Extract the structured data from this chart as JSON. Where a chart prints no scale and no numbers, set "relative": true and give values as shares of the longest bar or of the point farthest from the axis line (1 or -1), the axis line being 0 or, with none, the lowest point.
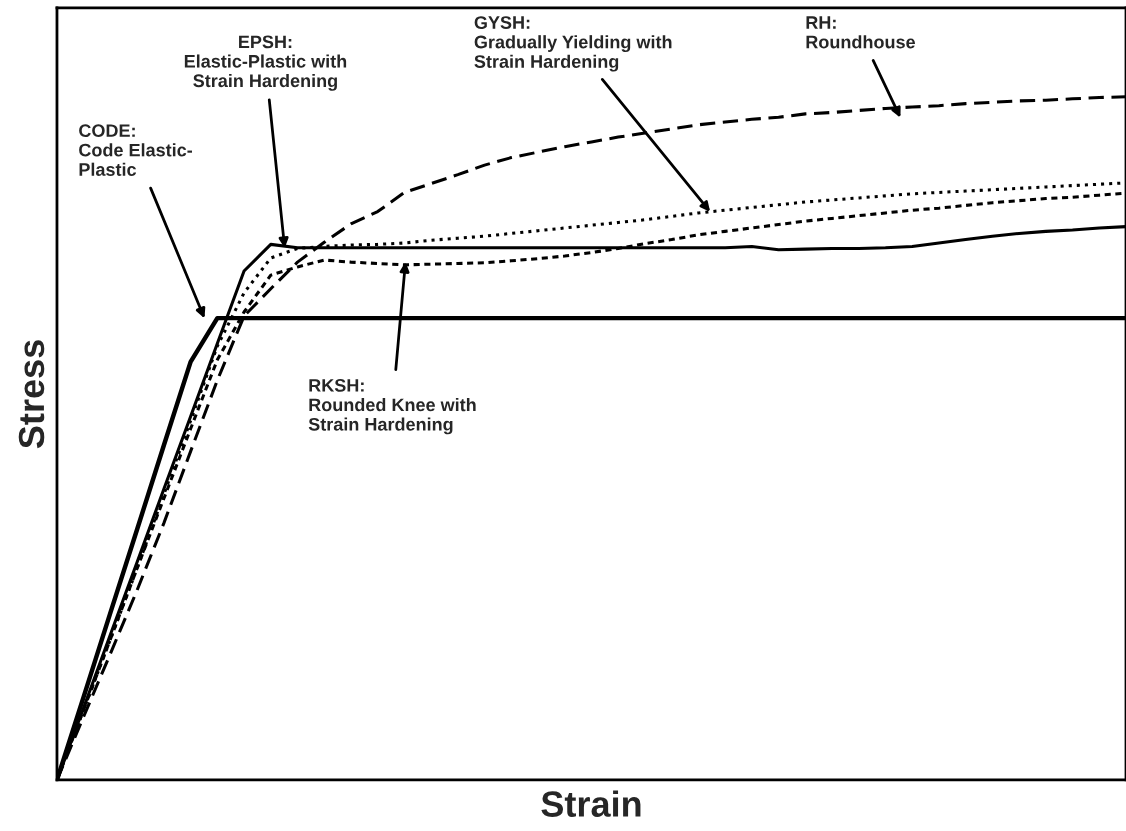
{
  "chart_data": {
    "type": "line",
    "relative": true,
    "xlabel": "Strain",
    "ylabel": "Stress",
    "categories": [
      null,
      null,
      null,
      null,
      null,
      null,
      null,
      null,
      null,
      null,
      null,
      null,
      null,
      null,
      null,
      null,
      null,
      null,
      null,
      null,
      null,
      null,
      null,
      null,
      null,
      null,
      null,
      null,
      null,
      null,
      null,
      null,
      null,
      null,
      null,
      null,
      null,
      null,
      null,
      null,
      null
    ],
    "series": [
      {
        "color": "#000000",
        "line_style": "solid",
        "values": [
          0,
          0.122,
          0.245,
          0.367,
          0.49,
          0.612,
          0.676,
          0.676,
          0.676,
          0.676,
          0.676,
          0.676,
          0.676,
          0.676,
          0.676,
          0.676,
          0.676,
          0.676,
          0.676,
          0.676,
          0.676,
          0.676,
          0.676,
          0.676,
          0.676,
          0.676,
          0.676,
          0.676,
          0.676,
          0.676,
          0.676,
          0.676,
          0.676,
          0.676,
          0.676,
          0.676,
          0.676,
          0.676,
          0.676,
          0.676,
          0.676
        ]
      },
      {
        "color": "#000000",
        "line_style": "solid",
        "values": [
          0,
          0.106,
          0.213,
          0.319,
          0.426,
          0.532,
          0.639,
          0.745,
          0.784,
          0.779,
          0.779,
          0.779,
          0.779,
          0.779,
          0.779,
          0.779,
          0.779,
          0.779,
          0.779,
          0.779,
          0.779,
          0.779,
          0.779,
          0.779,
          0.779,
          0.779,
          0.781,
          0.776,
          0.777,
          0.778,
          0.778,
          0.779,
          0.781,
          0.786,
          0.791,
          0.796,
          0.8,
          0.803,
          0.805,
          0.808,
          0.81
        ]
      },
      {
        "color": "#000000",
        "line_style": "dotted",
        "values": [
          0,
          0.103,
          0.206,
          0.31,
          0.418,
          0.526,
          0.635,
          0.713,
          0.764,
          0.778,
          0.781,
          0.783,
          0.784,
          0.786,
          0.79,
          0.793,
          0.796,
          0.8,
          0.804,
          0.808,
          0.812,
          0.816,
          0.82,
          0.825,
          0.83,
          0.834,
          0.838,
          0.842,
          0.846,
          0.849,
          0.852,
          0.855,
          0.858,
          0.86,
          0.862,
          0.864,
          0.866,
          0.868,
          0.87,
          0.872,
          0.874
        ]
      },
      {
        "color": "#000000",
        "line_style": "dashed",
        "values": [
          0,
          0.103,
          0.206,
          0.31,
          0.412,
          0.514,
          0.615,
          0.685,
          0.739,
          0.751,
          0.761,
          0.758,
          0.756,
          0.754,
          0.755,
          0.756,
          0.757,
          0.76,
          0.763,
          0.767,
          0.772,
          0.778,
          0.785,
          0.791,
          0.798,
          0.803,
          0.808,
          0.813,
          0.818,
          0.822,
          0.826,
          0.83,
          0.834,
          0.837,
          0.841,
          0.845,
          0.848,
          0.851,
          0.853,
          0.856,
          0.859
        ]
      },
      {
        "color": "#000000",
        "line_style": "dashed",
        "values": [
          0,
          0.093,
          0.185,
          0.278,
          0.376,
          0.481,
          0.585,
          0.679,
          0.719,
          0.758,
          0.787,
          0.814,
          0.832,
          0.86,
          0.873,
          0.886,
          0.9,
          0.911,
          0.919,
          0.927,
          0.934,
          0.941,
          0.947,
          0.953,
          0.959,
          0.963,
          0.967,
          0.97,
          0.975,
          0.977,
          0.98,
          0.983,
          0.985,
          0.987,
          0.99,
          0.992,
          0.994,
          0.995,
          0.997,
          0.999,
          1.0
        ]
      }
    ],
    "annotations": [
      "CODE:\nCode Elastic-\nPlastic",
      "EPSH:\nElastic-Plastic with\nStrain Hardening",
      "GYSH:\nGradually Yielding with\nStrain Hardening",
      "RH:\nRoundhouse",
      "RKSH:\nRounded Knee with\nStrain Hardening"
    ]
  }
}
